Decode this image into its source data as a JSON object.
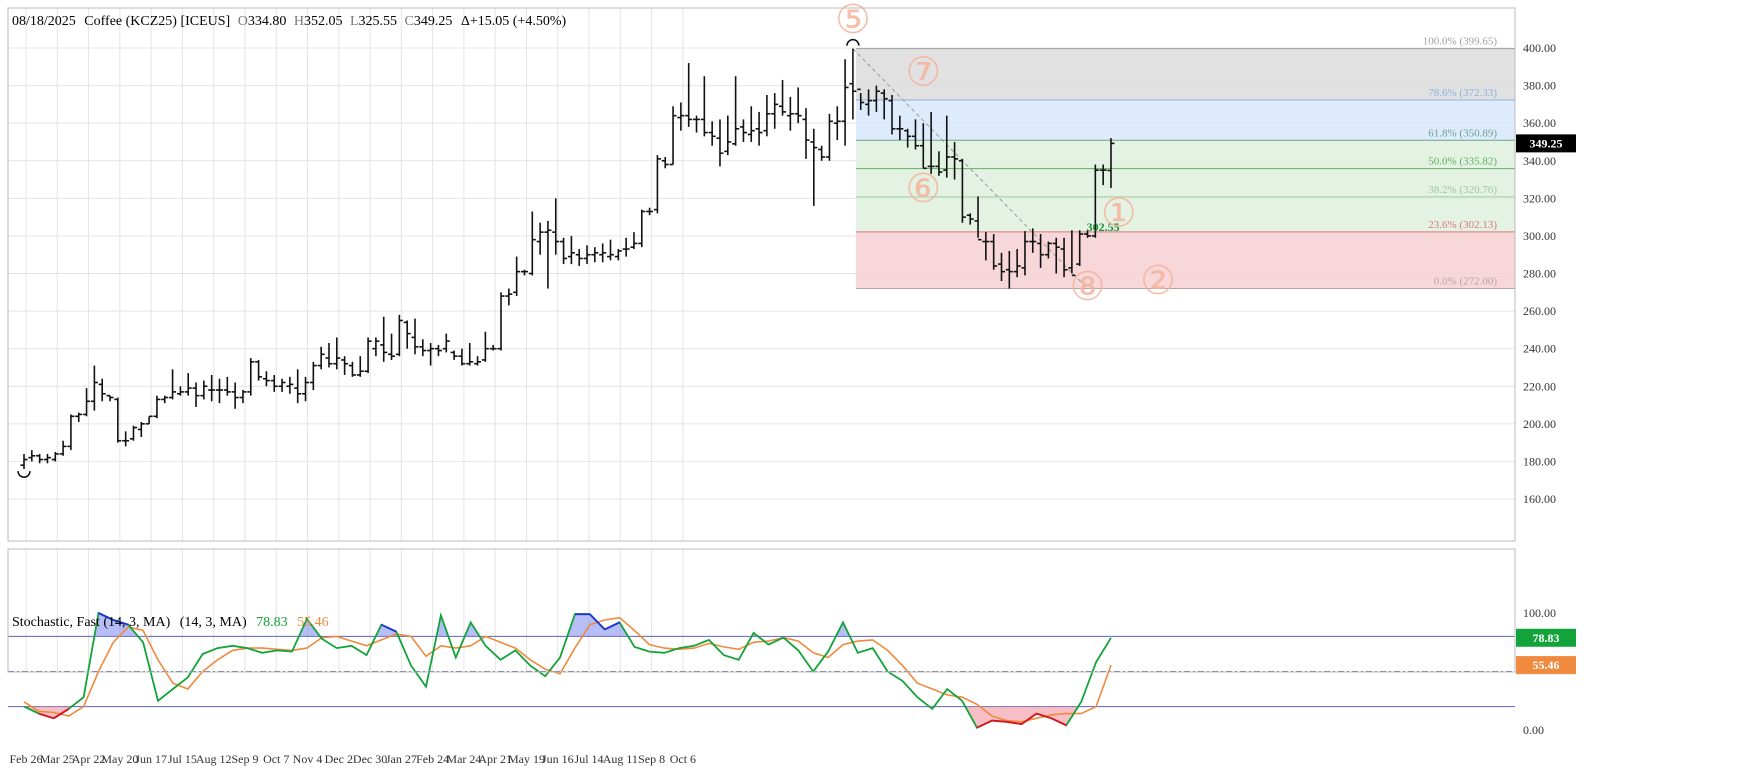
{
  "header": {
    "date": "08/18/2025",
    "name": "Coffee (KCZ25) [ICEUS]",
    "open_label": "O",
    "open": "334.80",
    "high_label": "H",
    "high": "352.05",
    "low_label": "L",
    "low": "325.55",
    "close_label": "C",
    "close": "349.25",
    "change": "Δ+15.05 (+4.50%)"
  },
  "colors": {
    "bars": "#111111",
    "fib_gray": "#dcdcdc",
    "fib_blue": "#d7e8fb",
    "fib_green": "#dff0de",
    "fib_red": "#f7d0d3",
    "stoch_k": "#12a33a",
    "stoch_d": "#ef8a3e",
    "overbought_fill": "#7b86ee",
    "oversold_fill": "#f08a95",
    "wave_label": "#f4b49c"
  },
  "chart_data": [
    {
      "type": "ohlc",
      "title": "08/18/2025 Coffee (KCZ25) [ICEUS]",
      "interval": "weekly",
      "ylim": [
        160,
        400
      ],
      "y_ticks": [
        "400.00",
        "380.00",
        "360.00",
        "340.00",
        "320.00",
        "300.00",
        "280.00",
        "260.00",
        "240.00",
        "220.00",
        "200.00",
        "180.00",
        "160.00"
      ],
      "x_ticks": [
        "Feb 26",
        "Mar 25",
        "Apr 22",
        "May 20",
        "Jun 17",
        "Jul 15",
        "Aug 12",
        "Sep 9",
        "Oct 7",
        "Nov 4",
        "Dec 2",
        "Dec 30",
        "Jan 27",
        "Feb 24",
        "Mar 24",
        "Apr 21",
        "May 19",
        "Jun 16",
        "Jul 14",
        "Aug 11",
        "Sep 8",
        "Oct 6"
      ],
      "last_price_label": "349.25",
      "bars": [
        {
          "o": 178,
          "h": 184,
          "l": 176,
          "c": 181
        },
        {
          "o": 182,
          "h": 186,
          "l": 180,
          "c": 183
        },
        {
          "o": 183,
          "h": 184,
          "l": 179,
          "c": 181
        },
        {
          "o": 181,
          "h": 184,
          "l": 179,
          "c": 182
        },
        {
          "o": 181,
          "h": 185,
          "l": 180,
          "c": 184
        },
        {
          "o": 184,
          "h": 191,
          "l": 183,
          "c": 188
        },
        {
          "o": 188,
          "h": 205,
          "l": 186,
          "c": 204
        },
        {
          "o": 204,
          "h": 206,
          "l": 201,
          "c": 205
        },
        {
          "o": 205,
          "h": 219,
          "l": 204,
          "c": 212
        },
        {
          "o": 212,
          "h": 231,
          "l": 207,
          "c": 222
        },
        {
          "o": 221,
          "h": 224,
          "l": 212,
          "c": 216
        },
        {
          "o": 215,
          "h": 215,
          "l": 212,
          "c": 214
        },
        {
          "o": 213,
          "h": 214,
          "l": 190,
          "c": 191
        },
        {
          "o": 191,
          "h": 196,
          "l": 188,
          "c": 191
        },
        {
          "o": 192,
          "h": 199,
          "l": 191,
          "c": 198
        },
        {
          "o": 197,
          "h": 201,
          "l": 193,
          "c": 200
        },
        {
          "o": 200,
          "h": 204,
          "l": 200,
          "c": 204
        },
        {
          "o": 204,
          "h": 215,
          "l": 203,
          "c": 213
        },
        {
          "o": 213,
          "h": 215,
          "l": 211,
          "c": 214
        },
        {
          "o": 214,
          "h": 229,
          "l": 213,
          "c": 217
        },
        {
          "o": 216,
          "h": 220,
          "l": 215,
          "c": 217
        },
        {
          "o": 217,
          "h": 227,
          "l": 215,
          "c": 219
        },
        {
          "o": 219,
          "h": 222,
          "l": 209,
          "c": 215
        },
        {
          "o": 215,
          "h": 223,
          "l": 213,
          "c": 220
        },
        {
          "o": 218,
          "h": 226,
          "l": 212,
          "c": 218
        },
        {
          "o": 218,
          "h": 224,
          "l": 211,
          "c": 218
        },
        {
          "o": 218,
          "h": 225,
          "l": 215,
          "c": 217
        },
        {
          "o": 217,
          "h": 222,
          "l": 208,
          "c": 214
        },
        {
          "o": 214,
          "h": 218,
          "l": 211,
          "c": 217
        },
        {
          "o": 217,
          "h": 235,
          "l": 215,
          "c": 233
        },
        {
          "o": 233,
          "h": 234,
          "l": 223,
          "c": 225
        },
        {
          "o": 224,
          "h": 228,
          "l": 220,
          "c": 223
        },
        {
          "o": 223,
          "h": 226,
          "l": 217,
          "c": 220
        },
        {
          "o": 220,
          "h": 224,
          "l": 217,
          "c": 222
        },
        {
          "o": 220,
          "h": 225,
          "l": 216,
          "c": 221
        },
        {
          "o": 219,
          "h": 229,
          "l": 211,
          "c": 216
        },
        {
          "o": 216,
          "h": 225,
          "l": 212,
          "c": 222
        },
        {
          "o": 222,
          "h": 233,
          "l": 218,
          "c": 231
        },
        {
          "o": 231,
          "h": 241,
          "l": 229,
          "c": 237
        },
        {
          "o": 235,
          "h": 243,
          "l": 230,
          "c": 232
        },
        {
          "o": 232,
          "h": 246,
          "l": 229,
          "c": 235
        },
        {
          "o": 234,
          "h": 236,
          "l": 226,
          "c": 232
        },
        {
          "o": 231,
          "h": 233,
          "l": 225,
          "c": 226
        },
        {
          "o": 226,
          "h": 236,
          "l": 225,
          "c": 228
        },
        {
          "o": 228,
          "h": 246,
          "l": 227,
          "c": 244
        },
        {
          "o": 240,
          "h": 246,
          "l": 236,
          "c": 244
        },
        {
          "o": 242,
          "h": 257,
          "l": 233,
          "c": 238
        },
        {
          "o": 237,
          "h": 248,
          "l": 234,
          "c": 236
        },
        {
          "o": 237,
          "h": 258,
          "l": 236,
          "c": 255
        },
        {
          "o": 254,
          "h": 255,
          "l": 240,
          "c": 248
        },
        {
          "o": 246,
          "h": 256,
          "l": 237,
          "c": 241
        },
        {
          "o": 241,
          "h": 245,
          "l": 236,
          "c": 239
        },
        {
          "o": 239,
          "h": 243,
          "l": 231,
          "c": 240
        },
        {
          "o": 240,
          "h": 242,
          "l": 236,
          "c": 239
        },
        {
          "o": 240,
          "h": 248,
          "l": 238,
          "c": 244
        },
        {
          "o": 238,
          "h": 239,
          "l": 234,
          "c": 236
        },
        {
          "o": 236,
          "h": 240,
          "l": 231,
          "c": 232
        },
        {
          "o": 232,
          "h": 243,
          "l": 231,
          "c": 233
        },
        {
          "o": 232,
          "h": 236,
          "l": 231,
          "c": 233
        },
        {
          "o": 234,
          "h": 249,
          "l": 233,
          "c": 240
        },
        {
          "o": 240,
          "h": 242,
          "l": 239,
          "c": 240
        },
        {
          "o": 240,
          "h": 270,
          "l": 239,
          "c": 268
        },
        {
          "o": 268,
          "h": 272,
          "l": 263,
          "c": 269
        },
        {
          "o": 270,
          "h": 289,
          "l": 268,
          "c": 281
        },
        {
          "o": 281,
          "h": 282,
          "l": 279,
          "c": 281
        },
        {
          "o": 280,
          "h": 313,
          "l": 279,
          "c": 298
        },
        {
          "o": 297,
          "h": 307,
          "l": 290,
          "c": 302
        },
        {
          "o": 302,
          "h": 308,
          "l": 272,
          "c": 303
        },
        {
          "o": 302,
          "h": 320,
          "l": 290,
          "c": 297
        },
        {
          "o": 297,
          "h": 299,
          "l": 285,
          "c": 288
        },
        {
          "o": 289,
          "h": 300,
          "l": 285,
          "c": 291
        },
        {
          "o": 290,
          "h": 293,
          "l": 284,
          "c": 288
        },
        {
          "o": 288,
          "h": 295,
          "l": 285,
          "c": 290
        },
        {
          "o": 290,
          "h": 294,
          "l": 286,
          "c": 291
        },
        {
          "o": 290,
          "h": 296,
          "l": 286,
          "c": 291
        },
        {
          "o": 289,
          "h": 298,
          "l": 287,
          "c": 290
        },
        {
          "o": 289,
          "h": 293,
          "l": 287,
          "c": 292
        },
        {
          "o": 293,
          "h": 299,
          "l": 289,
          "c": 293
        },
        {
          "o": 294,
          "h": 302,
          "l": 293,
          "c": 296
        },
        {
          "o": 296,
          "h": 314,
          "l": 294,
          "c": 313
        },
        {
          "o": 313,
          "h": 315,
          "l": 311,
          "c": 313
        },
        {
          "o": 314,
          "h": 343,
          "l": 312,
          "c": 341
        },
        {
          "o": 340,
          "h": 342,
          "l": 336,
          "c": 338
        },
        {
          "o": 338,
          "h": 369,
          "l": 338,
          "c": 364
        },
        {
          "o": 363,
          "h": 371,
          "l": 356,
          "c": 364
        },
        {
          "o": 364,
          "h": 392,
          "l": 358,
          "c": 362
        },
        {
          "o": 362,
          "h": 364,
          "l": 355,
          "c": 362
        },
        {
          "o": 362,
          "h": 385,
          "l": 353,
          "c": 355
        },
        {
          "o": 355,
          "h": 361,
          "l": 348,
          "c": 353
        },
        {
          "o": 352,
          "h": 362,
          "l": 337,
          "c": 344
        },
        {
          "o": 345,
          "h": 364,
          "l": 343,
          "c": 350
        },
        {
          "o": 349,
          "h": 385,
          "l": 348,
          "c": 357
        },
        {
          "o": 358,
          "h": 362,
          "l": 350,
          "c": 355
        },
        {
          "o": 354,
          "h": 369,
          "l": 350,
          "c": 356
        },
        {
          "o": 357,
          "h": 366,
          "l": 348,
          "c": 355
        },
        {
          "o": 356,
          "h": 375,
          "l": 353,
          "c": 365
        },
        {
          "o": 365,
          "h": 376,
          "l": 357,
          "c": 370
        },
        {
          "o": 369,
          "h": 383,
          "l": 364,
          "c": 366
        },
        {
          "o": 364,
          "h": 374,
          "l": 356,
          "c": 365
        },
        {
          "o": 365,
          "h": 379,
          "l": 360,
          "c": 364
        },
        {
          "o": 362,
          "h": 368,
          "l": 341,
          "c": 351
        },
        {
          "o": 350,
          "h": 357,
          "l": 316,
          "c": 347
        },
        {
          "o": 346,
          "h": 348,
          "l": 340,
          "c": 342
        },
        {
          "o": 342,
          "h": 365,
          "l": 340,
          "c": 361
        },
        {
          "o": 360,
          "h": 369,
          "l": 351,
          "c": 361
        },
        {
          "o": 361,
          "h": 394,
          "l": 348,
          "c": 379
        },
        {
          "o": 381,
          "h": 399.65,
          "l": 362,
          "c": 377
        },
        {
          "o": 378,
          "h": 376,
          "l": 367,
          "c": 371
        },
        {
          "o": 370,
          "h": 378,
          "l": 364,
          "c": 372
        },
        {
          "o": 372,
          "h": 380,
          "l": 366,
          "c": 377
        },
        {
          "o": 376,
          "h": 378,
          "l": 362,
          "c": 373
        },
        {
          "o": 372,
          "h": 375,
          "l": 354,
          "c": 357
        },
        {
          "o": 357,
          "h": 364,
          "l": 351,
          "c": 357
        },
        {
          "o": 356,
          "h": 357,
          "l": 347,
          "c": 353
        },
        {
          "o": 353,
          "h": 362,
          "l": 346,
          "c": 348
        },
        {
          "o": 348,
          "h": 360,
          "l": 336,
          "c": 336
        },
        {
          "o": 337,
          "h": 366,
          "l": 333,
          "c": 337
        },
        {
          "o": 337,
          "h": 345,
          "l": 332,
          "c": 334
        },
        {
          "o": 335,
          "h": 364,
          "l": 331,
          "c": 342
        },
        {
          "o": 342,
          "h": 350,
          "l": 330,
          "c": 341
        },
        {
          "o": 340,
          "h": 341,
          "l": 307,
          "c": 310
        },
        {
          "o": 311,
          "h": 312,
          "l": 306,
          "c": 309
        },
        {
          "o": 308,
          "h": 321,
          "l": 299,
          "c": 298
        },
        {
          "o": 297,
          "h": 302,
          "l": 287,
          "c": 297
        },
        {
          "o": 297,
          "h": 301,
          "l": 282,
          "c": 284
        },
        {
          "o": 285,
          "h": 291,
          "l": 276,
          "c": 281
        },
        {
          "o": 282,
          "h": 292,
          "l": 272,
          "c": 281
        },
        {
          "o": 281,
          "h": 293,
          "l": 278,
          "c": 284
        },
        {
          "o": 283,
          "h": 302.55,
          "l": 279,
          "c": 297
        },
        {
          "o": 297,
          "h": 304,
          "l": 291,
          "c": 297
        },
        {
          "o": 296,
          "h": 301,
          "l": 283,
          "c": 290
        },
        {
          "o": 290,
          "h": 297,
          "l": 288,
          "c": 296
        },
        {
          "o": 296,
          "h": 299,
          "l": 280,
          "c": 294
        },
        {
          "o": 293,
          "h": 299,
          "l": 278,
          "c": 282
        },
        {
          "o": 283,
          "h": 303,
          "l": 280,
          "c": 279
        },
        {
          "o": 285,
          "h": 303,
          "l": 284,
          "c": 301
        },
        {
          "o": 301,
          "h": 303,
          "l": 299,
          "c": 300
        },
        {
          "o": 300,
          "h": 338,
          "l": 299,
          "c": 335
        },
        {
          "o": 335,
          "h": 338,
          "l": 327,
          "c": 335
        },
        {
          "o": 334.8,
          "h": 352.05,
          "l": 325.55,
          "c": 349.25
        }
      ],
      "fib": {
        "high": 399.65,
        "low": 272.0,
        "levels": [
          {
            "pct": 100.0,
            "price": 399.65,
            "label": "100.0% (399.65)",
            "color": "#a0a0a0"
          },
          {
            "pct": 78.6,
            "price": 372.33,
            "label": "78.6% (372.33)",
            "color": "#8ab0dd"
          },
          {
            "pct": 61.8,
            "price": 350.89,
            "label": "61.8% (350.89)",
            "color": "#6aa48f"
          },
          {
            "pct": 50.0,
            "price": 335.82,
            "label": "50.0% (335.82)",
            "color": "#62b060"
          },
          {
            "pct": 38.2,
            "price": 320.76,
            "label": "38.2% (320.76)",
            "color": "#9ccb9a"
          },
          {
            "pct": 23.6,
            "price": 302.13,
            "label": "23.6% (302.13)",
            "color": "#d87a7a"
          },
          {
            "pct": 0.0,
            "price": 272.0,
            "label": "0.0% (272.00)",
            "color": "#b5a5a5"
          }
        ]
      },
      "annotations": [
        {
          "text": "302.55",
          "bar": 138,
          "price": 302.55,
          "color": "#1f8a3a"
        },
        {
          "text": "⑤",
          "bar": 106,
          "price": 408,
          "color": "#f4b49c"
        },
        {
          "text": "⑦",
          "bar": 115,
          "price": 380,
          "color": "#f4b49c"
        },
        {
          "text": "⑥",
          "bar": 115,
          "price": 318,
          "color": "#f4b49c"
        },
        {
          "text": "①",
          "bar": 140,
          "price": 305,
          "color": "#f4b49c"
        },
        {
          "text": "⑧",
          "bar": 136,
          "price": 266,
          "color": "#f4b49c"
        },
        {
          "text": "②",
          "bar": 145,
          "price": 269,
          "color": "#f4b49c"
        }
      ]
    },
    {
      "type": "line",
      "title": "Stochastic, Fast (14, 3, MA)",
      "params_label": "(14, 3, MA)",
      "k_value_label": "78.83",
      "d_value_label": "55.46",
      "ylim": [
        0,
        100
      ],
      "y_ticks": [
        "100.00",
        "0.00"
      ],
      "overbought": 80,
      "oversold": 20,
      "midline": 50,
      "k": [
        20,
        14,
        10,
        18,
        28,
        100,
        94,
        90,
        75,
        25,
        35,
        45,
        65,
        70,
        72,
        70,
        66,
        68,
        67,
        95,
        78,
        70,
        72,
        64,
        90,
        84,
        55,
        37,
        98,
        62,
        92,
        72,
        60,
        68,
        55,
        46,
        62,
        99,
        99,
        86,
        92,
        71,
        67,
        66,
        70,
        72,
        77,
        64,
        60,
        83,
        73,
        79,
        68,
        50,
        67,
        92,
        66,
        70,
        50,
        42,
        28,
        18,
        35,
        25,
        2,
        8,
        7,
        5,
        14,
        10,
        4,
        24,
        58,
        78.83
      ],
      "d": [
        24,
        16,
        15,
        12,
        20,
        50,
        75,
        88,
        85,
        60,
        40,
        35,
        50,
        60,
        68,
        70,
        70,
        69,
        68,
        70,
        79,
        80,
        76,
        72,
        77,
        82,
        80,
        63,
        72,
        70,
        72,
        80,
        75,
        70,
        60,
        52,
        48,
        70,
        90,
        94,
        96,
        85,
        73,
        70,
        69,
        70,
        74,
        71,
        69,
        75,
        76,
        79,
        76,
        66,
        62,
        73,
        76,
        77,
        68,
        55,
        40,
        35,
        30,
        28,
        22,
        12,
        8,
        7,
        10,
        13,
        14,
        14,
        20,
        55.46
      ],
      "start_bar": 0
    }
  ]
}
